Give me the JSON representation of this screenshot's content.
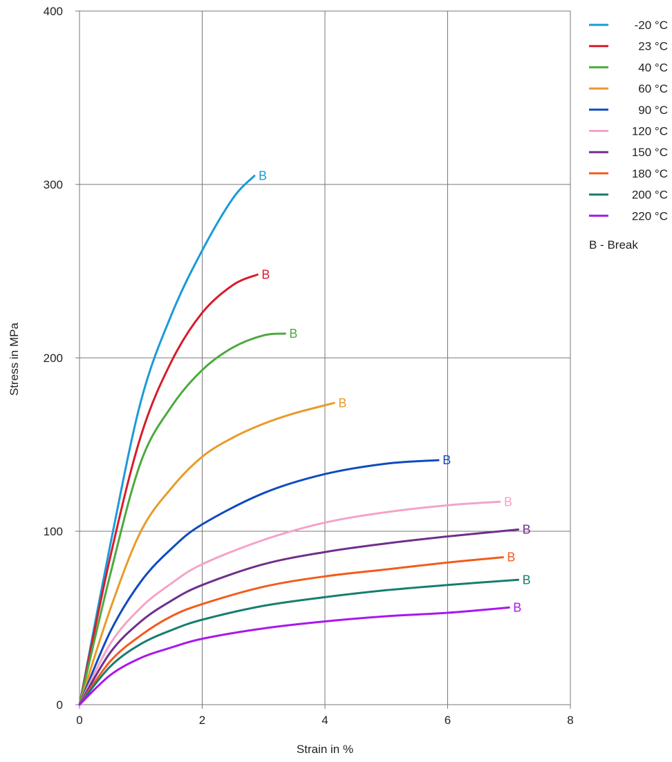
{
  "chart_data": {
    "type": "line",
    "title": "",
    "xlabel": "Strain in  %",
    "ylabel": "Stress in  MPa",
    "xlim": [
      0,
      8
    ],
    "ylim": [
      0,
      400
    ],
    "xticks": [
      0,
      2,
      4,
      6,
      8
    ],
    "yticks": [
      0,
      100,
      200,
      300,
      400
    ],
    "grid": true,
    "legend_position": "right",
    "legend_note": "B - Break",
    "break_marker": "B",
    "series": [
      {
        "name": "-20 °C",
        "color": "#1a9ad9",
        "x": [
          0,
          0.5,
          1.0,
          1.5,
          2.0,
          2.5,
          2.85
        ],
        "y": [
          0,
          92,
          175,
          225,
          262,
          292,
          305
        ]
      },
      {
        "name": "23 °C",
        "color": "#d81b2b",
        "x": [
          0,
          0.5,
          1.0,
          1.5,
          2.0,
          2.5,
          2.9
        ],
        "y": [
          0,
          85,
          155,
          198,
          226,
          242,
          248
        ]
      },
      {
        "name": "40 °C",
        "color": "#4aaa3c",
        "x": [
          0,
          0.5,
          1.0,
          1.5,
          2.0,
          2.5,
          3.0,
          3.35
        ],
        "y": [
          0,
          75,
          140,
          172,
          193,
          206,
          213,
          214
        ]
      },
      {
        "name": "60 °C",
        "color": "#e99a28",
        "x": [
          0,
          0.5,
          1.0,
          1.5,
          2.0,
          2.5,
          3.0,
          3.5,
          4.15
        ],
        "y": [
          0,
          55,
          100,
          125,
          143,
          154,
          162,
          168,
          174
        ]
      },
      {
        "name": "90 °C",
        "color": "#0f4bc0",
        "x": [
          0,
          0.5,
          1.0,
          1.5,
          2.0,
          3.0,
          4.0,
          5.0,
          5.85
        ],
        "y": [
          0,
          42,
          71,
          90,
          104,
          122,
          133,
          139,
          141
        ]
      },
      {
        "name": "120 °C",
        "color": "#f4a3c8",
        "x": [
          0,
          0.5,
          1.0,
          1.5,
          2.0,
          3.0,
          4.0,
          5.0,
          6.0,
          6.85
        ],
        "y": [
          0,
          35,
          56,
          70,
          81,
          95,
          105,
          111,
          115,
          117
        ]
      },
      {
        "name": "150 °C",
        "color": "#6f2e8c",
        "x": [
          0,
          0.5,
          1.0,
          1.5,
          2.0,
          3.0,
          4.0,
          5.0,
          6.0,
          7.15
        ],
        "y": [
          0,
          30,
          48,
          60,
          69,
          81,
          88,
          93,
          97,
          101
        ]
      },
      {
        "name": "180 °C",
        "color": "#f25b1d",
        "x": [
          0,
          0.5,
          1.0,
          1.5,
          2.0,
          3.0,
          4.0,
          5.0,
          6.0,
          6.9
        ],
        "y": [
          0,
          25,
          40,
          51,
          58,
          68,
          74,
          78,
          82,
          85
        ]
      },
      {
        "name": "200 °C",
        "color": "#177d70",
        "x": [
          0,
          0.5,
          1.0,
          1.5,
          2.0,
          3.0,
          4.0,
          5.0,
          6.0,
          7.15
        ],
        "y": [
          0,
          22,
          35,
          43,
          49,
          57,
          62,
          66,
          69,
          72
        ]
      },
      {
        "name": "220 °C",
        "color": "#a817ec",
        "x": [
          0,
          0.5,
          1.0,
          1.5,
          2.0,
          3.0,
          4.0,
          5.0,
          6.0,
          7.0
        ],
        "y": [
          0,
          17,
          27,
          33,
          38,
          44,
          48,
          51,
          53,
          56
        ]
      }
    ]
  }
}
